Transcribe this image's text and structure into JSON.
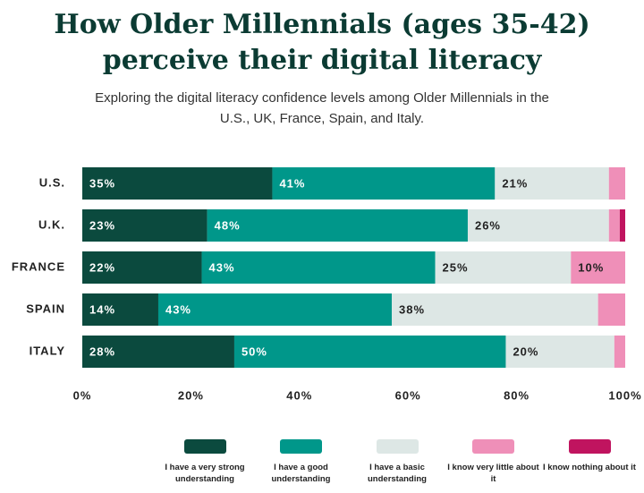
{
  "chart_data": {
    "type": "stacked-bar-horizontal",
    "title": "How Older Millennials (ages 35-42) perceive their digital literacy",
    "subtitle": "Exploring the digital literacy confidence levels among Older Millennials in the U.S., UK, France, Spain, and Italy.",
    "categories": [
      "U.S.",
      "U.K.",
      "FRANCE",
      "SPAIN",
      "ITALY"
    ],
    "series": [
      {
        "name": "I have a very strong understanding",
        "color": "#0b4a3e",
        "values": [
          35,
          23,
          22,
          14,
          28
        ],
        "value_labels": [
          "35%",
          "23%",
          "22%",
          "14%",
          "28%"
        ]
      },
      {
        "name": "I have a good understanding",
        "color": "#00978a",
        "values": [
          41,
          48,
          43,
          43,
          50
        ],
        "value_labels": [
          "41%",
          "48%",
          "43%",
          "43%",
          "50%"
        ]
      },
      {
        "name": "I have a basic understanding",
        "color": "#dde7e5",
        "values": [
          21,
          26,
          25,
          38,
          20
        ],
        "value_labels": [
          "21%",
          "26%",
          "25%",
          "38%",
          "20%"
        ]
      },
      {
        "name": "I know very little about it",
        "color": "#ef8fb8",
        "values": [
          3,
          2,
          10,
          5,
          2
        ],
        "value_labels": [
          null,
          null,
          "10%",
          null,
          null
        ]
      },
      {
        "name": "I know nothing about it",
        "color": "#c0145f",
        "values": [
          0,
          1,
          0,
          0,
          0
        ],
        "value_labels": [
          null,
          null,
          null,
          null,
          null
        ]
      }
    ],
    "xlim": [
      0,
      100
    ],
    "xticks": [
      {
        "value": 0,
        "label": "0%"
      },
      {
        "value": 20,
        "label": "20%"
      },
      {
        "value": 40,
        "label": "40%"
      },
      {
        "value": 60,
        "label": "60%"
      },
      {
        "value": 80,
        "label": "80%"
      },
      {
        "value": 100,
        "label": "100%"
      }
    ],
    "grid": false
  }
}
